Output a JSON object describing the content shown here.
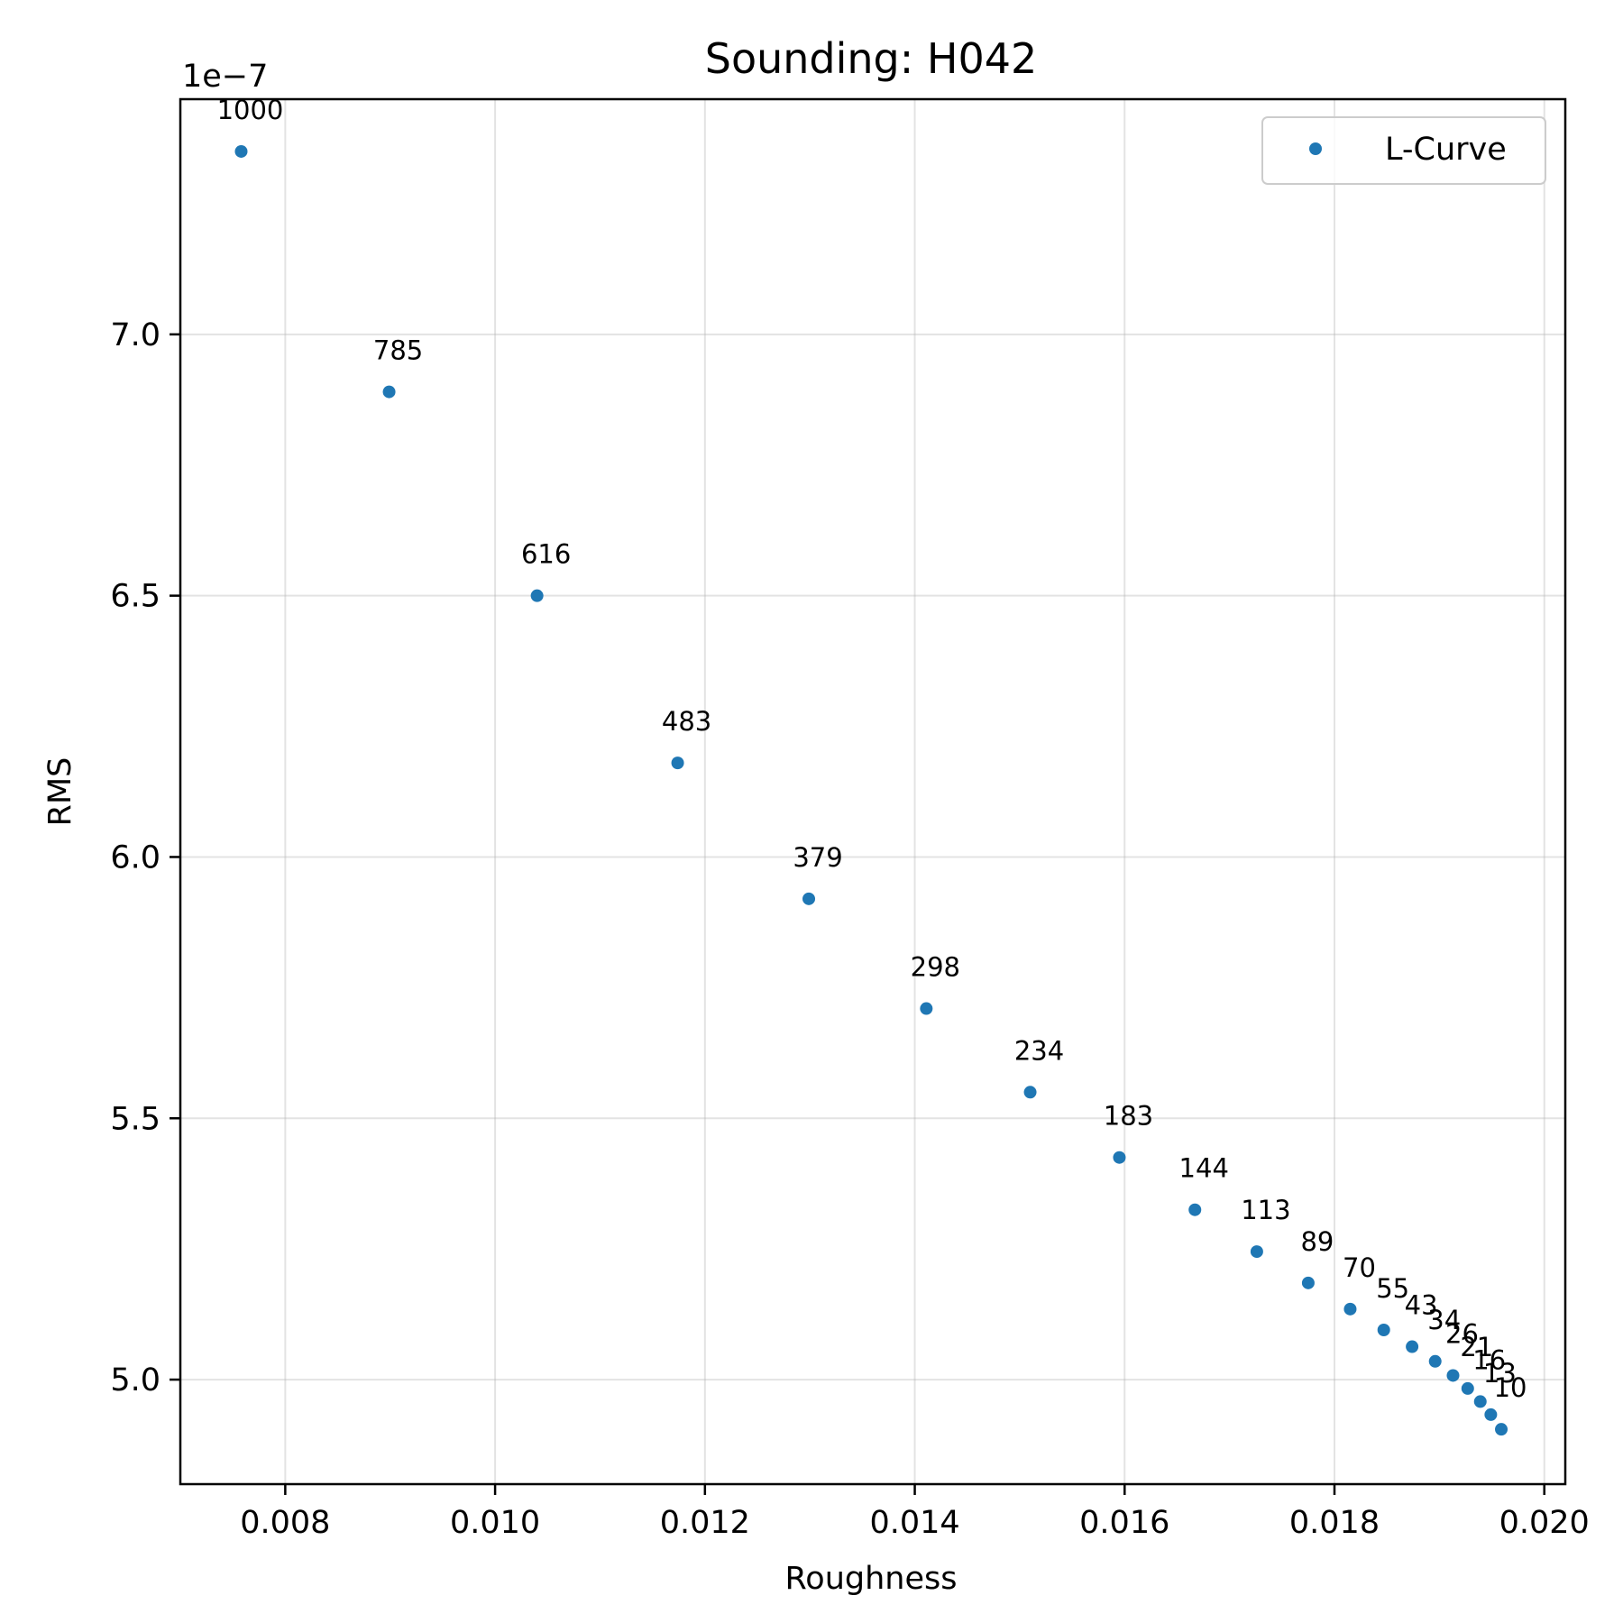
{
  "chart_data": {
    "type": "scatter",
    "title": "Sounding: H042",
    "xlabel": "Roughness",
    "ylabel": "RMS",
    "y_offset_label": "1e−7",
    "y_scale_factor": 1e-07,
    "xlim": [
      0.007,
      0.0202
    ],
    "ylim": [
      4.8,
      7.45
    ],
    "grid": true,
    "legend_position": "top-right",
    "color": "#1f77b4",
    "xticks": [
      {
        "value": 0.008,
        "label": "0.008"
      },
      {
        "value": 0.01,
        "label": "0.010"
      },
      {
        "value": 0.012,
        "label": "0.012"
      },
      {
        "value": 0.014,
        "label": "0.014"
      },
      {
        "value": 0.016,
        "label": "0.016"
      },
      {
        "value": 0.018,
        "label": "0.018"
      },
      {
        "value": 0.02,
        "label": "0.020"
      }
    ],
    "yticks": [
      {
        "value": 5.0,
        "label": "5.0"
      },
      {
        "value": 5.5,
        "label": "5.5"
      },
      {
        "value": 6.0,
        "label": "6.0"
      },
      {
        "value": 6.5,
        "label": "6.5"
      },
      {
        "value": 7.0,
        "label": "7.0"
      }
    ],
    "series": [
      {
        "name": "L-Curve",
        "points": [
          {
            "x": 0.00758,
            "y": 7.35,
            "label": "1000"
          },
          {
            "x": 0.00899,
            "y": 6.89,
            "label": "785"
          },
          {
            "x": 0.0104,
            "y": 6.5,
            "label": "616"
          },
          {
            "x": 0.01174,
            "y": 6.18,
            "label": "483"
          },
          {
            "x": 0.01299,
            "y": 5.92,
            "label": "379"
          },
          {
            "x": 0.01411,
            "y": 5.71,
            "label": "298"
          },
          {
            "x": 0.0151,
            "y": 5.55,
            "label": "234"
          },
          {
            "x": 0.01595,
            "y": 5.425,
            "label": "183"
          },
          {
            "x": 0.01667,
            "y": 5.325,
            "label": "144"
          },
          {
            "x": 0.01726,
            "y": 5.245,
            "label": "113"
          },
          {
            "x": 0.01775,
            "y": 5.185,
            "label": "89"
          },
          {
            "x": 0.01815,
            "y": 5.135,
            "label": "70"
          },
          {
            "x": 0.01847,
            "y": 5.095,
            "label": "55"
          },
          {
            "x": 0.01874,
            "y": 5.063,
            "label": "43"
          },
          {
            "x": 0.01896,
            "y": 5.035,
            "label": "34"
          },
          {
            "x": 0.01913,
            "y": 5.008,
            "label": "26"
          },
          {
            "x": 0.01927,
            "y": 4.983,
            "label": "21"
          },
          {
            "x": 0.01939,
            "y": 4.958,
            "label": "16"
          },
          {
            "x": 0.01949,
            "y": 4.933,
            "label": "13"
          },
          {
            "x": 0.01959,
            "y": 4.905,
            "label": "10"
          }
        ]
      }
    ]
  }
}
